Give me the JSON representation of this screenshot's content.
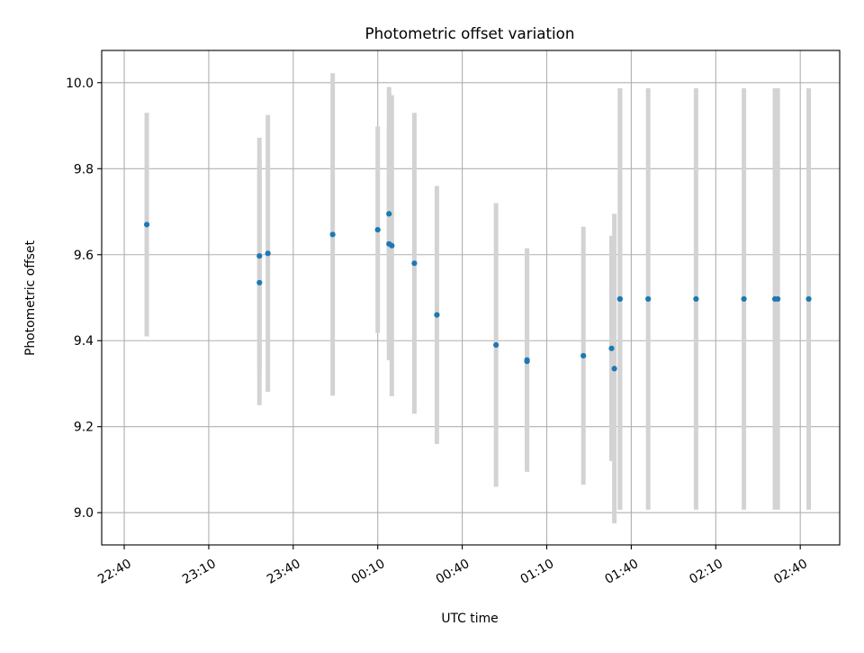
{
  "chart_data": {
    "type": "scatter",
    "title": "Photometric offset variation",
    "xlabel": "UTC time",
    "ylabel": "Photometric offset",
    "x_ticks": [
      "22:40",
      "23:10",
      "23:40",
      "00:10",
      "00:40",
      "01:10",
      "01:40",
      "02:10",
      "02:40"
    ],
    "x_tick_minutes": [
      0,
      30,
      60,
      90,
      120,
      150,
      180,
      210,
      240
    ],
    "y_ticks": [
      "9.0",
      "9.2",
      "9.4",
      "9.6",
      "9.8",
      "10.0"
    ],
    "xlim_minutes": [
      -8.0,
      254.0
    ],
    "ylim": [
      8.925,
      10.075
    ],
    "grid": true,
    "legend": false,
    "colors": {
      "marker": "#1f77b4",
      "errorbar": "#d3d3d3",
      "grid": "#b0b0b0"
    },
    "series": [
      {
        "points": [
          {
            "t": "22:48",
            "y": 9.67,
            "err": 0.26
          },
          {
            "t": "23:28",
            "y": 9.535,
            "err": 0.285
          },
          {
            "t": "23:28",
            "y": 9.597,
            "err": 0.275
          },
          {
            "t": "23:31",
            "y": 9.603,
            "err": 0.322
          },
          {
            "t": "23:54",
            "y": 9.647,
            "err": 0.375
          },
          {
            "t": "00:10",
            "y": 9.658,
            "err": 0.24
          },
          {
            "t": "00:14",
            "y": 9.625,
            "err": 0.27
          },
          {
            "t": "00:14",
            "y": 9.695,
            "err": 0.295
          },
          {
            "t": "00:15",
            "y": 9.621,
            "err": 0.35
          },
          {
            "t": "00:23",
            "y": 9.58,
            "err": 0.35
          },
          {
            "t": "00:31",
            "y": 9.46,
            "err": 0.3
          },
          {
            "t": "00:52",
            "y": 9.39,
            "err": 0.33
          },
          {
            "t": "01:03",
            "y": 9.355,
            "err": 0.26
          },
          {
            "t": "01:03",
            "y": 9.352,
            "err": 0.24
          },
          {
            "t": "01:23",
            "y": 9.365,
            "err": 0.3
          },
          {
            "t": "01:33",
            "y": 9.382,
            "err": 0.262
          },
          {
            "t": "01:34",
            "y": 9.335,
            "err": 0.36
          },
          {
            "t": "01:36",
            "y": 9.497,
            "err": 0.49
          },
          {
            "t": "01:36",
            "y": 9.497,
            "err": 0.49
          },
          {
            "t": "01:46",
            "y": 9.497,
            "err": 0.49
          },
          {
            "t": "02:03",
            "y": 9.497,
            "err": 0.49
          },
          {
            "t": "02:20",
            "y": 9.497,
            "err": 0.49
          },
          {
            "t": "02:31",
            "y": 9.497,
            "err": 0.49
          },
          {
            "t": "02:32",
            "y": 9.497,
            "err": 0.49
          },
          {
            "t": "02:43",
            "y": 9.497,
            "err": 0.49
          }
        ]
      }
    ]
  }
}
